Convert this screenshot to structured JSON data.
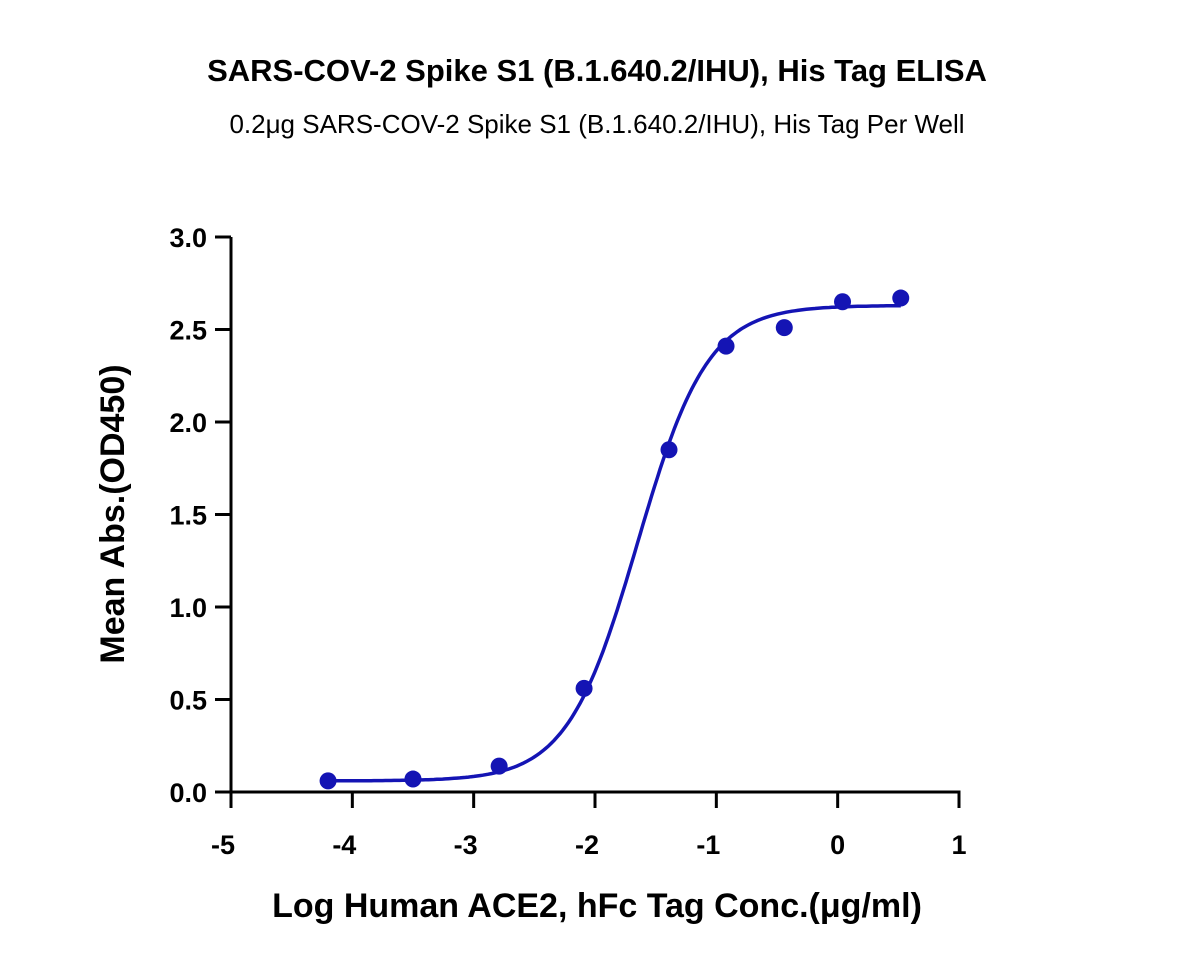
{
  "chart_data": {
    "type": "scatter",
    "title": "SARS-COV-2 Spike S1 (B.1.640.2/IHU), His Tag ELISA",
    "subtitle": "0.2μg SARS-COV-2 Spike S1 (B.1.640.2/IHU), His Tag Per Well",
    "xlabel": "Log Human ACE2, hFc Tag Conc.(μg/ml)",
    "ylabel": "Mean Abs.(OD450)",
    "xlim": [
      -5,
      1
    ],
    "ylim": [
      0,
      3.0
    ],
    "xticks": [
      -5,
      -4,
      -3,
      -2,
      -1,
      0,
      1
    ],
    "xtick_labels": [
      "-5",
      "-4",
      "-3",
      "-2",
      "-1",
      "0",
      "1"
    ],
    "yticks": [
      0,
      0.5,
      1.0,
      1.5,
      2.0,
      2.5,
      3.0
    ],
    "ytick_labels": [
      "0.0",
      "0.5",
      "1.0",
      "1.5",
      "2.0",
      "2.5",
      "3.0"
    ],
    "grid": false,
    "color": "#1414b4",
    "series": [
      {
        "name": "Mean Abs.",
        "x": [
          -4.2,
          -3.5,
          -2.79,
          -2.09,
          -1.39,
          -0.92,
          -0.44,
          0.04,
          0.52
        ],
        "y": [
          0.06,
          0.07,
          0.14,
          0.56,
          1.85,
          2.41,
          2.51,
          2.65,
          2.67
        ]
      }
    ],
    "fit": {
      "model": "4PL",
      "bottom": 0.06,
      "top": 2.63,
      "logEC50": -1.65,
      "hill": 1.5
    }
  }
}
